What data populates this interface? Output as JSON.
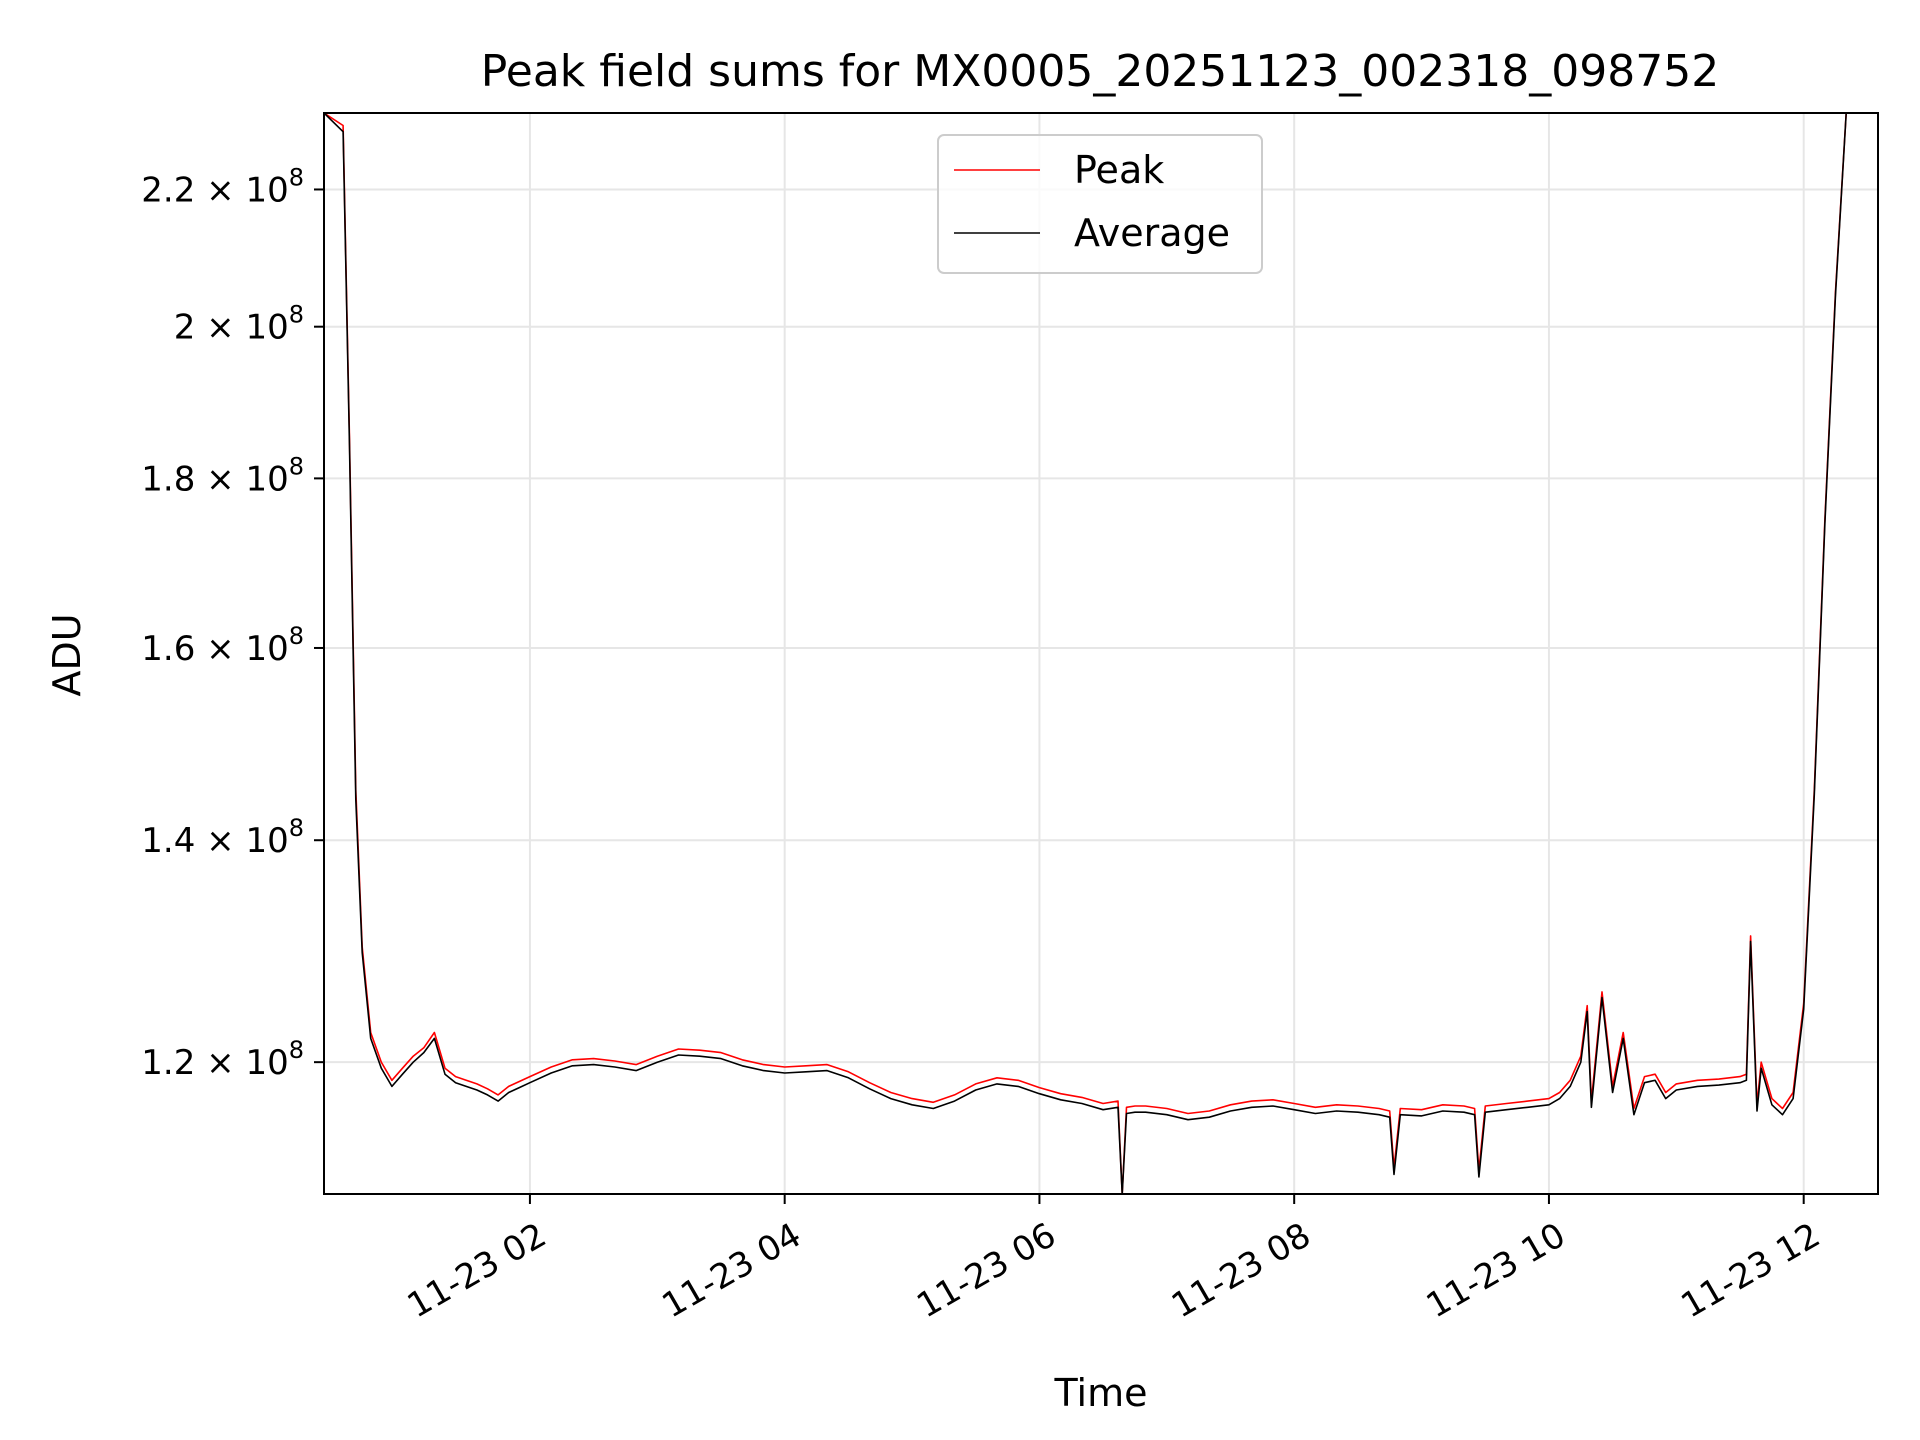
{
  "chart_data": {
    "type": "line",
    "title": "Peak field sums for MX0005_20251123_002318_098752",
    "xlabel": "Time",
    "ylabel": "ADU",
    "y_scale": "log",
    "grid": true,
    "legend_placement": "upper-center",
    "xlim": [
      "2025-11-23 00:23",
      "2025-11-23 12:35"
    ],
    "ylim": [
      109500000,
      232000000
    ],
    "x_ticks": [
      {
        "value": "2025-11-23 02:00",
        "label": "11-23 02"
      },
      {
        "value": "2025-11-23 04:00",
        "label": "11-23 04"
      },
      {
        "value": "2025-11-23 06:00",
        "label": "11-23 06"
      },
      {
        "value": "2025-11-23 08:00",
        "label": "11-23 08"
      },
      {
        "value": "2025-11-23 10:00",
        "label": "11-23 10"
      },
      {
        "value": "2025-11-23 12:00",
        "label": "11-23 12"
      }
    ],
    "y_ticks": [
      {
        "value": 120000000,
        "mantissa": "1.2",
        "base": "10",
        "exp": "8"
      },
      {
        "value": 140000000,
        "mantissa": "1.4",
        "base": "10",
        "exp": "8"
      },
      {
        "value": 160000000,
        "mantissa": "1.6",
        "base": "10",
        "exp": "8"
      },
      {
        "value": 180000000,
        "mantissa": "1.8",
        "base": "10",
        "exp": "8"
      },
      {
        "value": 200000000,
        "mantissa": "2",
        "base": "10",
        "exp": "8"
      },
      {
        "value": 220000000,
        "mantissa": "2.2",
        "base": "10",
        "exp": "8"
      }
    ],
    "series": [
      {
        "name": "Peak",
        "color": "#ff0000"
      },
      {
        "name": "Average",
        "color": "#000000"
      }
    ],
    "x": [
      "2025-11-23 00:23",
      "2025-11-23 00:32",
      "2025-11-23 00:35",
      "2025-11-23 00:38",
      "2025-11-23 00:41",
      "2025-11-23 00:45",
      "2025-11-23 00:50",
      "2025-11-23 00:55",
      "2025-11-23 01:00",
      "2025-11-23 01:05",
      "2025-11-23 01:10",
      "2025-11-23 01:15",
      "2025-11-23 01:20",
      "2025-11-23 01:25",
      "2025-11-23 01:30",
      "2025-11-23 01:35",
      "2025-11-23 01:40",
      "2025-11-23 01:45",
      "2025-11-23 01:50",
      "2025-11-23 01:55",
      "2025-11-23 02:00",
      "2025-11-23 02:10",
      "2025-11-23 02:20",
      "2025-11-23 02:30",
      "2025-11-23 02:40",
      "2025-11-23 02:50",
      "2025-11-23 03:00",
      "2025-11-23 03:10",
      "2025-11-23 03:20",
      "2025-11-23 03:30",
      "2025-11-23 03:40",
      "2025-11-23 03:50",
      "2025-11-23 04:00",
      "2025-11-23 04:10",
      "2025-11-23 04:20",
      "2025-11-23 04:30",
      "2025-11-23 04:40",
      "2025-11-23 04:50",
      "2025-11-23 05:00",
      "2025-11-23 05:10",
      "2025-11-23 05:20",
      "2025-11-23 05:30",
      "2025-11-23 05:40",
      "2025-11-23 05:50",
      "2025-11-23 06:00",
      "2025-11-23 06:10",
      "2025-11-23 06:20",
      "2025-11-23 06:30",
      "2025-11-23 06:37",
      "2025-11-23 06:39",
      "2025-11-23 06:41",
      "2025-11-23 06:45",
      "2025-11-23 06:50",
      "2025-11-23 07:00",
      "2025-11-23 07:10",
      "2025-11-23 07:20",
      "2025-11-23 07:30",
      "2025-11-23 07:40",
      "2025-11-23 07:50",
      "2025-11-23 08:00",
      "2025-11-23 08:10",
      "2025-11-23 08:20",
      "2025-11-23 08:30",
      "2025-11-23 08:40",
      "2025-11-23 08:45",
      "2025-11-23 08:47",
      "2025-11-23 08:50",
      "2025-11-23 09:00",
      "2025-11-23 09:10",
      "2025-11-23 09:20",
      "2025-11-23 09:25",
      "2025-11-23 09:27",
      "2025-11-23 09:30",
      "2025-11-23 09:40",
      "2025-11-23 09:50",
      "2025-11-23 10:00",
      "2025-11-23 10:05",
      "2025-11-23 10:10",
      "2025-11-23 10:15",
      "2025-11-23 10:18",
      "2025-11-23 10:20",
      "2025-11-23 10:25",
      "2025-11-23 10:30",
      "2025-11-23 10:35",
      "2025-11-23 10:40",
      "2025-11-23 10:45",
      "2025-11-23 10:50",
      "2025-11-23 10:55",
      "2025-11-23 11:00",
      "2025-11-23 11:10",
      "2025-11-23 11:20",
      "2025-11-23 11:30",
      "2025-11-23 11:33",
      "2025-11-23 11:35",
      "2025-11-23 11:38",
      "2025-11-23 11:40",
      "2025-11-23 11:45",
      "2025-11-23 11:50",
      "2025-11-23 11:55",
      "2025-11-23 12:00",
      "2025-11-23 12:05",
      "2025-11-23 12:10",
      "2025-11-23 12:15",
      "2025-11-23 12:20",
      "2025-11-23 12:25",
      "2025-11-23 12:30",
      "2025-11-23 12:35"
    ],
    "peak_values": [
      232000000,
      230000000,
      185000000,
      145000000,
      130000000,
      122500000,
      120000000,
      118500000,
      119500000,
      120500000,
      121200000,
      122500000,
      119500000,
      118800000,
      118500000,
      118200000,
      117800000,
      117300000,
      118000000,
      118400000,
      118800000,
      119600000,
      120200000,
      120300000,
      120100000,
      119800000,
      120500000,
      121100000,
      121000000,
      120800000,
      120200000,
      119800000,
      119600000,
      119700000,
      119800000,
      119200000,
      118300000,
      117500000,
      117000000,
      116700000,
      117300000,
      118200000,
      118700000,
      118500000,
      117900000,
      117400000,
      117100000,
      116600000,
      116800000,
      109500000,
      116300000,
      116400000,
      116400000,
      116200000,
      115800000,
      116000000,
      116500000,
      116800000,
      116900000,
      116600000,
      116300000,
      116500000,
      116400000,
      116200000,
      116000000,
      111500000,
      116200000,
      116100000,
      116500000,
      116400000,
      116200000,
      111300000,
      116400000,
      116600000,
      116800000,
      117000000,
      117500000,
      118500000,
      120500000,
      124800000,
      116800000,
      126000000,
      118000000,
      122500000,
      116200000,
      118800000,
      119000000,
      117500000,
      118200000,
      118500000,
      118600000,
      118800000,
      119000000,
      131000000,
      116500000,
      120000000,
      117000000,
      116200000,
      117500000,
      125000000,
      145000000,
      175000000,
      205000000,
      232000000,
      232000000,
      232000000,
      232000000
    ],
    "average_values": [
      232000000,
      229000000,
      184000000,
      144000000,
      129500000,
      122000000,
      119500000,
      118000000,
      119000000,
      120000000,
      120800000,
      122000000,
      119000000,
      118300000,
      118000000,
      117700000,
      117300000,
      116800000,
      117500000,
      117900000,
      118300000,
      119100000,
      119700000,
      119800000,
      119600000,
      119300000,
      120000000,
      120600000,
      120500000,
      120300000,
      119700000,
      119300000,
      119100000,
      119200000,
      119300000,
      118700000,
      117800000,
      117000000,
      116500000,
      116200000,
      116800000,
      117700000,
      118200000,
      118000000,
      117400000,
      116900000,
      116600000,
      116100000,
      116300000,
      109500000,
      115800000,
      115900000,
      115900000,
      115700000,
      115300000,
      115500000,
      116000000,
      116300000,
      116400000,
      116100000,
      115800000,
      116000000,
      115900000,
      115700000,
      115500000,
      111000000,
      115700000,
      115600000,
      116000000,
      115900000,
      115700000,
      110800000,
      115900000,
      116100000,
      116300000,
      116500000,
      117000000,
      118000000,
      120000000,
      124300000,
      116300000,
      125500000,
      117500000,
      122000000,
      115700000,
      118300000,
      118500000,
      117000000,
      117700000,
      118000000,
      118100000,
      118300000,
      118500000,
      130500000,
      116000000,
      119500000,
      116500000,
      115700000,
      117000000,
      124500000,
      144500000,
      174500000,
      204500000,
      232000000,
      232000000,
      232000000,
      232000000
    ]
  }
}
